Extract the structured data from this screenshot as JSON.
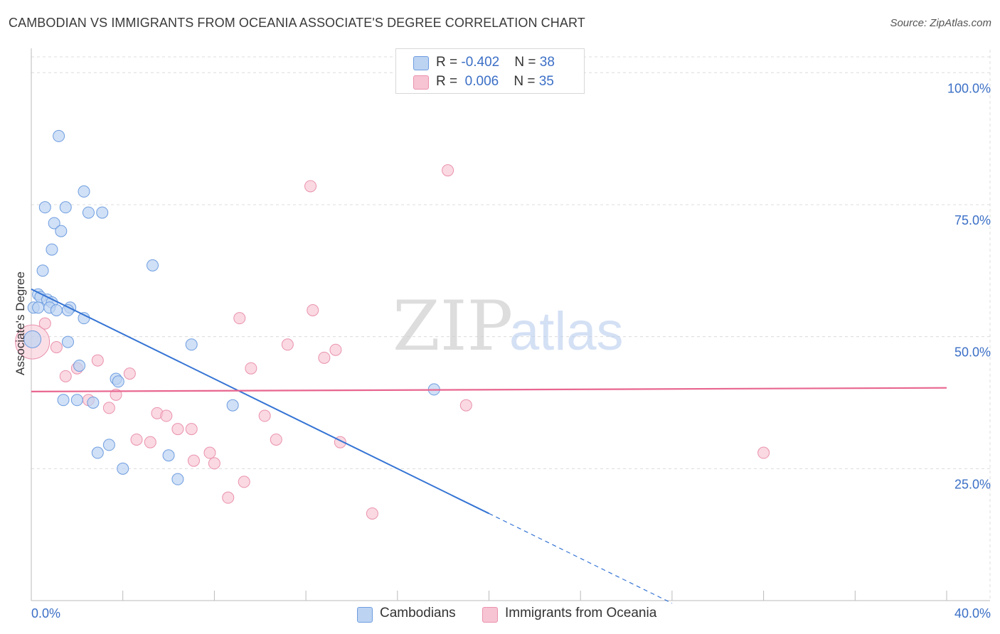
{
  "title": "CAMBODIAN VS IMMIGRANTS FROM OCEANIA ASSOCIATE'S DEGREE CORRELATION CHART",
  "source": "Source: ZipAtlas.com",
  "watermark": {
    "zip": "ZIP",
    "atlas": "atlas"
  },
  "colors": {
    "blue_fill": "#bcd3f2",
    "blue_stroke": "#6e9de0",
    "blue_line": "#3574d4",
    "pink_fill": "#f7c4d3",
    "pink_stroke": "#ea92ad",
    "pink_line": "#e8668f",
    "axis_label": "#3b6fc6",
    "grid": "#dcdcdc"
  },
  "legend": {
    "rows": [
      {
        "r_label": "R = ",
        "r_value": "-0.402",
        "n_label": "N = ",
        "n_value": "38"
      },
      {
        "r_label": "R = ",
        "r_value": " 0.006",
        "n_label": "N = ",
        "n_value": "35"
      }
    ]
  },
  "bottom_legend": {
    "series1": "Cambodians",
    "series2": "Immigrants from Oceania"
  },
  "chart_data": {
    "type": "scatter",
    "title": "CAMBODIAN VS IMMIGRANTS FROM OCEANIA ASSOCIATE'S DEGREE CORRELATION CHART",
    "xlabel": "",
    "ylabel": "Associate's Degree",
    "xlim": [
      0,
      40
    ],
    "ylim": [
      0,
      103
    ],
    "x_tick_labels": [
      {
        "value": 0,
        "label": "0.0%"
      },
      {
        "value": 40,
        "label": "40.0%"
      }
    ],
    "x_minor_ticks": [
      0,
      4,
      8,
      12,
      16,
      20,
      24,
      28,
      32,
      36,
      40
    ],
    "y_ticks": [
      {
        "value": 25,
        "label": "25.0%"
      },
      {
        "value": 50,
        "label": "50.0%"
      },
      {
        "value": 75,
        "label": "75.0%"
      },
      {
        "value": 100,
        "label": "100.0%"
      }
    ],
    "grid": true,
    "series": [
      {
        "name": "Cambodians",
        "r": -0.402,
        "n": 38,
        "points": [
          [
            1.2,
            88
          ],
          [
            2.3,
            77.5
          ],
          [
            0.6,
            74.5
          ],
          [
            1.5,
            74.5
          ],
          [
            2.5,
            73.5
          ],
          [
            3.1,
            73.5
          ],
          [
            1.0,
            71.5
          ],
          [
            1.3,
            70
          ],
          [
            0.9,
            66.5
          ],
          [
            5.3,
            63.5
          ],
          [
            0.5,
            62.5
          ],
          [
            0.3,
            58
          ],
          [
            0.4,
            57.5
          ],
          [
            0.7,
            57
          ],
          [
            0.9,
            56.5
          ],
          [
            0.1,
            55.5
          ],
          [
            0.3,
            55.5
          ],
          [
            0.8,
            55.5
          ],
          [
            1.7,
            55.5
          ],
          [
            1.6,
            55
          ],
          [
            1.1,
            55
          ],
          [
            2.3,
            53.5
          ],
          [
            0.05,
            49.5
          ],
          [
            1.6,
            49
          ],
          [
            7.0,
            48.5
          ],
          [
            2.1,
            44.5
          ],
          [
            3.7,
            42
          ],
          [
            3.8,
            41.5
          ],
          [
            1.4,
            38
          ],
          [
            2.0,
            38
          ],
          [
            2.7,
            37.5
          ],
          [
            8.8,
            37
          ],
          [
            17.6,
            40
          ],
          [
            3.4,
            29.5
          ],
          [
            2.9,
            28
          ],
          [
            6.0,
            27.5
          ],
          [
            4.0,
            25
          ],
          [
            6.4,
            23
          ]
        ],
        "trend": {
          "x0": 0,
          "y0": 59,
          "x1": 20,
          "y1": 16.5,
          "dash_x1": 28,
          "dash_y1": -0.5
        }
      },
      {
        "name": "Immigrants from Oceania",
        "r": 0.006,
        "n": 35,
        "points": [
          [
            18.2,
            81.5
          ],
          [
            12.2,
            78.5
          ],
          [
            12.3,
            55
          ],
          [
            9.1,
            53.5
          ],
          [
            0.6,
            52.5
          ],
          [
            0.05,
            49
          ],
          [
            11.2,
            48.5
          ],
          [
            13.3,
            47.5
          ],
          [
            1.1,
            48
          ],
          [
            12.8,
            46
          ],
          [
            2.9,
            45.5
          ],
          [
            9.6,
            44
          ],
          [
            4.3,
            43
          ],
          [
            1.5,
            42.5
          ],
          [
            2.0,
            44
          ],
          [
            3.7,
            39
          ],
          [
            2.5,
            38
          ],
          [
            3.4,
            36.5
          ],
          [
            5.5,
            35.5
          ],
          [
            5.9,
            35
          ],
          [
            19.0,
            37
          ],
          [
            10.2,
            35
          ],
          [
            6.4,
            32.5
          ],
          [
            7.0,
            32.5
          ],
          [
            4.6,
            30.5
          ],
          [
            5.2,
            30
          ],
          [
            10.7,
            30.5
          ],
          [
            13.5,
            30
          ],
          [
            7.8,
            28
          ],
          [
            7.1,
            26.5
          ],
          [
            8.0,
            26
          ],
          [
            9.3,
            22.5
          ],
          [
            8.6,
            19.5
          ],
          [
            14.9,
            16.5
          ],
          [
            32.0,
            28
          ]
        ],
        "trend": {
          "x0": 0,
          "y0": 39.6,
          "x1": 40,
          "y1": 40.3
        }
      }
    ]
  }
}
